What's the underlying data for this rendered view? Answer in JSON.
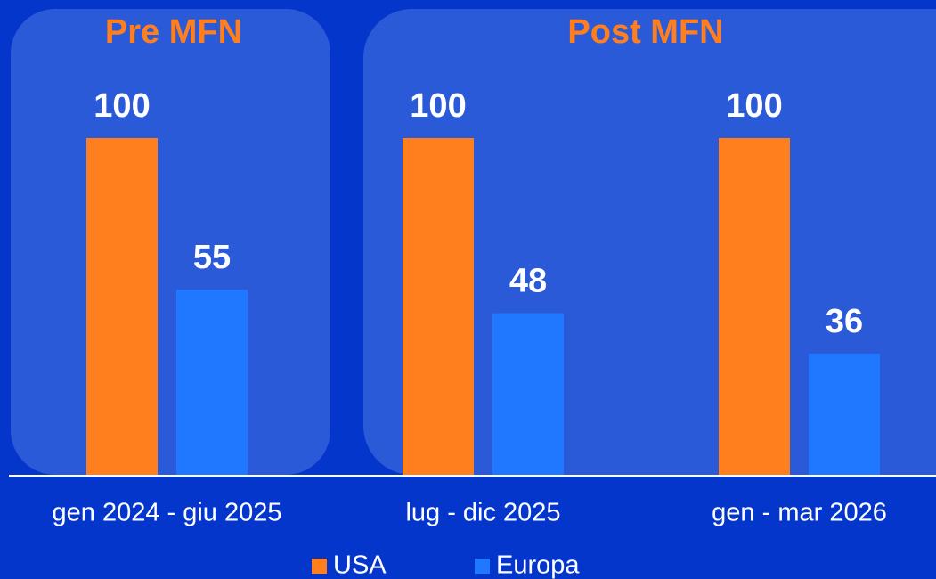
{
  "chart_data": {
    "type": "bar",
    "group_labels": [
      "Pre MFN",
      "Post MFN"
    ],
    "categories": [
      "gen 2024 - giu 2025",
      "lug - dic 2025",
      "gen - mar 2026"
    ],
    "series": [
      {
        "name": "USA",
        "color": "#ff7f1e",
        "values": [
          100,
          100,
          100
        ]
      },
      {
        "name": "Europa",
        "color": "#1f78ff",
        "values": [
          55,
          48,
          36
        ]
      }
    ],
    "ylim": [
      0,
      100
    ],
    "legend": "bottom"
  }
}
